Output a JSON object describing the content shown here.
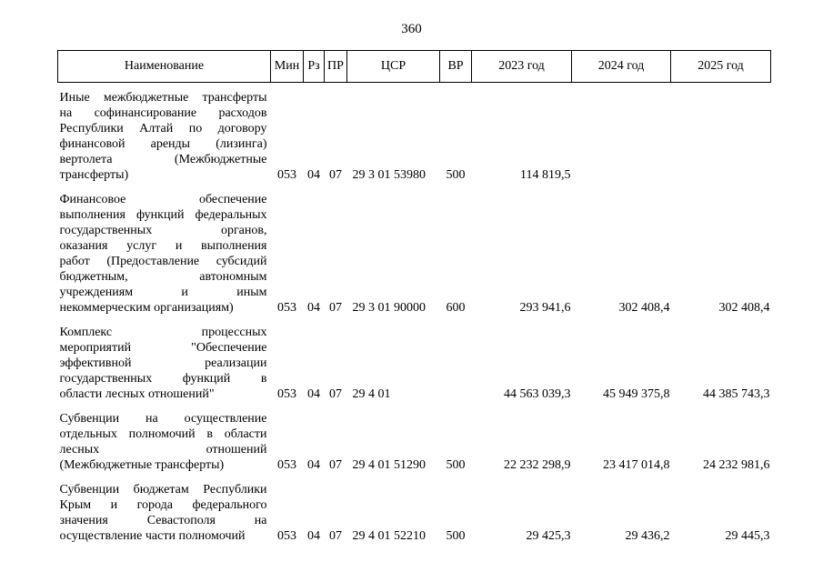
{
  "page_number": "360",
  "table": {
    "header": [
      "Наименование",
      "Мин",
      "Рз",
      "ПР",
      "ЦСР",
      "ВР",
      "2023 год",
      "2024 год",
      "2025 год"
    ],
    "rows": [
      {
        "name": [
          "Иные межбюджетные трансферты",
          "на софинансирование расходов",
          "Республики Алтай по договору",
          "финансовой аренды (лизинга)",
          "вертолета (Межбюджетные",
          "трансферты)"
        ],
        "cells": [
          "053",
          "04",
          "07",
          "29 3 01 53980",
          "500",
          "114 819,5",
          null,
          null
        ]
      },
      {
        "name": [
          "Финансовое обеспечение",
          "выполнения функций федеральных",
          "государственных органов,",
          "оказания услуг и выполнения",
          "работ (Предоставление субсидий",
          "бюджетным, автономным",
          "учреждениям и иным",
          "некоммерческим организациям)"
        ],
        "cells": [
          "053",
          "04",
          "07",
          "29 3 01 90000",
          "600",
          "293 941,6",
          "302 408,4",
          "302 408,4"
        ]
      },
      {
        "name": [
          "Комплекс процессных",
          "мероприятий \"Обеспечение",
          "эффективной реализации",
          "государственных функций в",
          "области лесных отношений\""
        ],
        "cells": [
          "053",
          "04",
          "07",
          "29 4 01",
          null,
          "44 563 039,3",
          "45 949 375,8",
          "44 385 743,3"
        ]
      },
      {
        "name": [
          "Субвенции на осуществление",
          "отдельных полномочий в области",
          "лесных отношений",
          "(Межбюджетные трансферты)"
        ],
        "cells": [
          "053",
          "04",
          "07",
          "29 4 01 51290",
          "500",
          "22 232 298,9",
          "23 417 014,8",
          "24 232 981,6"
        ]
      },
      {
        "name": [
          "Субвенции бюджетам Республики",
          "Крым и города федерального",
          "значения Севастополя на",
          "осуществление части полномочий"
        ],
        "cells": [
          "053",
          "04",
          "07",
          "29 4 01 52210",
          "500",
          "29 425,3",
          "29 436,2",
          "29 445,3"
        ]
      }
    ]
  }
}
